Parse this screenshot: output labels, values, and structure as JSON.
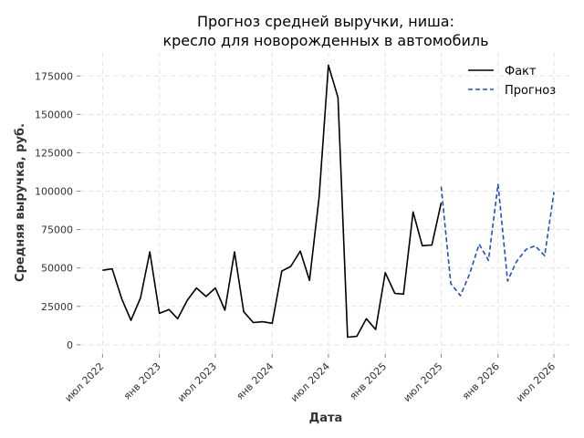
{
  "chart_data": {
    "type": "line",
    "title_lines": [
      "Прогноз средней выручки, ниша:",
      "кресло для новорожденных в автомобиль"
    ],
    "xlabel": "Дата",
    "ylabel": "Средняя выручка, руб.",
    "ylim": [
      -6000,
      190000
    ],
    "yticks": [
      0,
      25000,
      50000,
      75000,
      100000,
      125000,
      150000,
      175000
    ],
    "xlim": [
      "2022-04-20",
      "2026-08-20"
    ],
    "xticks": [
      {
        "label": "июл 2022",
        "date": "2022-07-01"
      },
      {
        "label": "янв 2023",
        "date": "2023-01-01"
      },
      {
        "label": "июл 2023",
        "date": "2023-07-01"
      },
      {
        "label": "янв 2024",
        "date": "2024-01-01"
      },
      {
        "label": "июл 2024",
        "date": "2024-07-01"
      },
      {
        "label": "янв 2025",
        "date": "2025-01-01"
      },
      {
        "label": "июл 2025",
        "date": "2025-07-01"
      },
      {
        "label": "янв 2026",
        "date": "2026-01-01"
      },
      {
        "label": "июл 2026",
        "date": "2026-07-01"
      }
    ],
    "grid": true,
    "legend_position": "top-right",
    "series": [
      {
        "name": "Факт",
        "color": "#000000",
        "style": "solid",
        "x": [
          "2022-07-01",
          "2022-08-01",
          "2022-09-01",
          "2022-10-01",
          "2022-11-01",
          "2022-12-01",
          "2023-01-01",
          "2023-02-01",
          "2023-03-01",
          "2023-04-01",
          "2023-05-01",
          "2023-06-01",
          "2023-07-01",
          "2023-08-01",
          "2023-09-01",
          "2023-10-01",
          "2023-11-01",
          "2023-12-01",
          "2024-01-01",
          "2024-02-01",
          "2024-03-01",
          "2024-04-01",
          "2024-05-01",
          "2024-06-01",
          "2024-07-01",
          "2024-08-01",
          "2024-09-01",
          "2024-10-01",
          "2024-11-01",
          "2024-12-01",
          "2025-01-01",
          "2025-02-01",
          "2025-03-01",
          "2025-04-01",
          "2025-05-01",
          "2025-06-01",
          "2025-07-01"
        ],
        "values": [
          48500,
          49500,
          30000,
          16000,
          30500,
          60500,
          20500,
          23000,
          17000,
          29000,
          37000,
          31500,
          37000,
          22500,
          60500,
          21500,
          14500,
          15000,
          14000,
          48000,
          51000,
          61000,
          42000,
          96000,
          182000,
          161000,
          5000,
          5500,
          17000,
          10000,
          47000,
          33500,
          33000,
          86500,
          64500,
          65000,
          92500
        ]
      },
      {
        "name": "Прогноз",
        "color": "#1f4fc8",
        "style": "dashed",
        "x": [
          "2025-07-01",
          "2025-08-01",
          "2025-09-01",
          "2025-10-01",
          "2025-11-01",
          "2025-12-01",
          "2026-01-01",
          "2026-02-01",
          "2026-03-01",
          "2026-04-01",
          "2026-05-01",
          "2026-06-01",
          "2026-07-01"
        ],
        "values": [
          103000,
          40000,
          32000,
          46000,
          65500,
          55000,
          104500,
          41500,
          54000,
          62000,
          64500,
          58000,
          99500
        ]
      }
    ]
  }
}
